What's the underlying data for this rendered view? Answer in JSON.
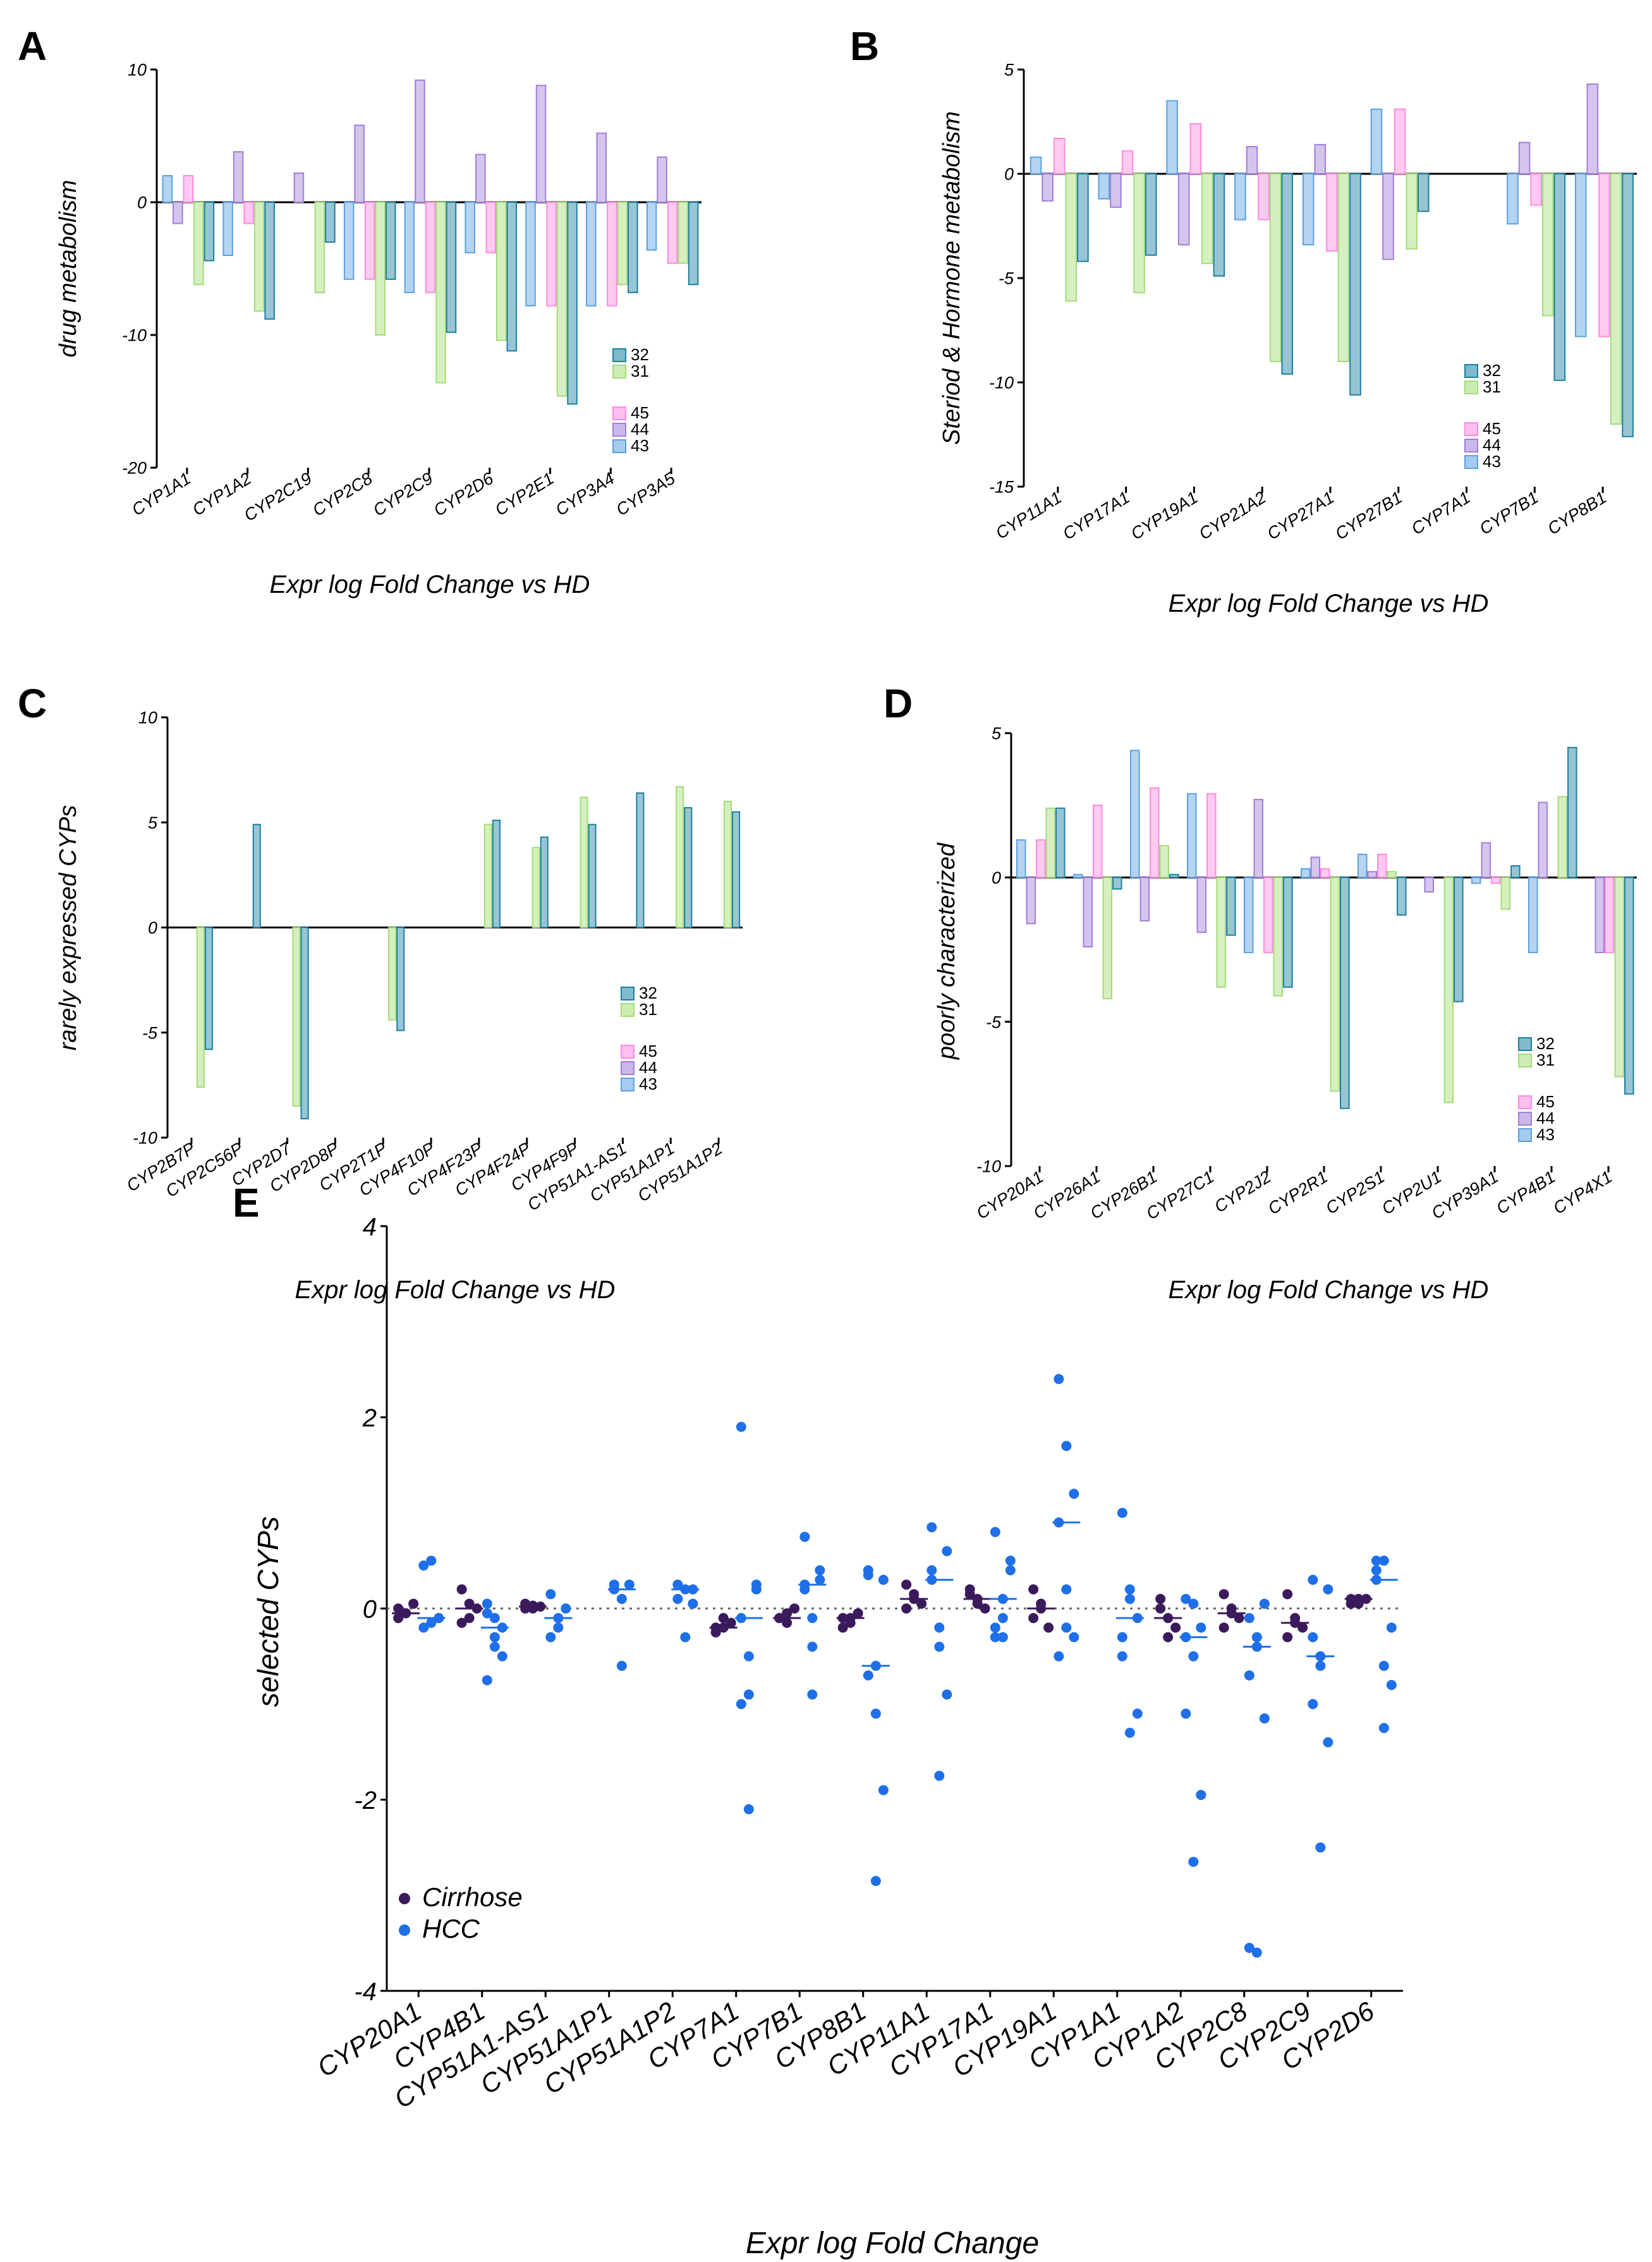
{
  "figure": {
    "series_colors": {
      "32": "#1b7fa0",
      "31": "#a4dc76",
      "45": "#ff8ae0",
      "44": "#a07ed8",
      "43": "#5ba0e0"
    }
  },
  "chart_data": [
    {
      "panel": "A",
      "type": "bar",
      "title": "",
      "ylabel": "drug metabolism",
      "xlabel": "Expr log Fold Change vs HD",
      "ylim": [
        -20,
        10
      ],
      "yticks": [
        10,
        0,
        -10,
        -20
      ],
      "categories": [
        "CYP1A1",
        "CYP1A2",
        "CYP2C19",
        "CYP2C8",
        "CYP2C9",
        "CYP2D6",
        "CYP2E1",
        "CYP3A4",
        "CYP3A5"
      ],
      "legend": [
        "32",
        "31",
        "45",
        "44",
        "43"
      ],
      "series": [
        {
          "name": "43",
          "values": [
            2,
            -4,
            0,
            -5.8,
            -6.8,
            -3.8,
            -7.8,
            -7.8,
            -3.6
          ]
        },
        {
          "name": "44",
          "values": [
            -1.6,
            3.8,
            2.2,
            5.8,
            9.2,
            3.6,
            8.8,
            5.2,
            3.4
          ]
        },
        {
          "name": "45",
          "values": [
            2,
            -1.6,
            0,
            -5.8,
            -6.8,
            -3.8,
            -7.8,
            -7.8,
            -4.6
          ]
        },
        {
          "name": "31",
          "values": [
            -6.2,
            -8.2,
            -6.8,
            -10,
            -13.6,
            -10.4,
            -14.6,
            -6.2,
            -4.6
          ]
        },
        {
          "name": "32",
          "values": [
            -4.4,
            -8.8,
            -3,
            -5.8,
            -9.8,
            -11.2,
            -15.2,
            -6.8,
            -6.2
          ]
        }
      ]
    },
    {
      "panel": "B",
      "type": "bar",
      "title": "",
      "ylabel": "Steriod & Hormone metabolism",
      "xlabel": "Expr log Fold Change vs HD",
      "ylim": [
        -15,
        5
      ],
      "yticks": [
        5,
        0,
        -5,
        -10,
        -15
      ],
      "categories": [
        "CYP11A1",
        "CYP17A1",
        "CYP19A1",
        "CYP21A2",
        "CYP27A1",
        "CYP27B1",
        "CYP7A1",
        "CYP7B1",
        "CYP8B1"
      ],
      "legend": [
        "32",
        "31",
        "45",
        "44",
        "43"
      ],
      "series": [
        {
          "name": "43",
          "values": [
            0.8,
            -1.2,
            3.5,
            -2.2,
            -3.4,
            3.1,
            0,
            -2.4,
            -7.8
          ]
        },
        {
          "name": "44",
          "values": [
            -1.3,
            -1.6,
            -3.4,
            1.3,
            1.4,
            -4.1,
            0,
            1.5,
            4.3
          ]
        },
        {
          "name": "45",
          "values": [
            1.7,
            1.1,
            2.4,
            -2.2,
            -3.7,
            3.1,
            0,
            -1.5,
            -7.8
          ]
        },
        {
          "name": "31",
          "values": [
            -6.1,
            -5.7,
            -4.3,
            -9,
            -9,
            -3.6,
            0,
            -6.8,
            -12
          ]
        },
        {
          "name": "32",
          "values": [
            -4.2,
            -3.9,
            -4.9,
            -9.6,
            -10.6,
            -1.8,
            0,
            -9.9,
            -12.6
          ]
        }
      ]
    },
    {
      "panel": "C",
      "type": "bar",
      "title": "",
      "ylabel": "rarely expressed CYPs",
      "xlabel": "Expr log Fold Change vs HD",
      "ylim": [
        -10,
        10
      ],
      "yticks": [
        10,
        5,
        0,
        -5,
        -10
      ],
      "categories": [
        "CYP2B7P",
        "CYP2C56P",
        "CYP2D7",
        "CYP2D8P",
        "CYP2T1P",
        "CYP4F10P",
        "CYP4F23P",
        "CYP4F24P",
        "CYP4F9P",
        "CYP51A1-AS1",
        "CYP51A1P1",
        "CYP51A1P2"
      ],
      "legend": [
        "32",
        "31",
        "45",
        "44",
        "43"
      ],
      "series": [
        {
          "name": "43",
          "values": [
            0,
            0,
            0,
            0,
            0,
            0,
            0,
            0,
            0,
            0,
            0,
            0
          ]
        },
        {
          "name": "44",
          "values": [
            0,
            0,
            0,
            0,
            0,
            0,
            0,
            0,
            0,
            0,
            0,
            0
          ]
        },
        {
          "name": "45",
          "values": [
            0,
            0,
            0,
            0,
            0,
            0,
            0,
            0,
            0,
            0,
            0,
            0
          ]
        },
        {
          "name": "31",
          "values": [
            -7.6,
            0,
            -8.5,
            0,
            -4.4,
            0,
            4.9,
            3.8,
            6.2,
            0,
            6.7,
            6
          ]
        },
        {
          "name": "32",
          "values": [
            -5.8,
            4.9,
            -9.1,
            0,
            -4.9,
            0,
            5.1,
            4.3,
            4.9,
            6.4,
            5.7,
            5.5
          ]
        }
      ]
    },
    {
      "panel": "D",
      "type": "bar",
      "title": "",
      "ylabel": "poorly characterized",
      "xlabel": "Expr log Fold Change vs HD",
      "ylim": [
        -10,
        5
      ],
      "yticks": [
        5,
        0,
        -5,
        -10
      ],
      "categories": [
        "CYP20A1",
        "CYP26A1",
        "CYP26B1",
        "CYP27C1",
        "CYP2J2",
        "CYP2R1",
        "CYP2S1",
        "CYP2U1",
        "CYP39A1",
        "CYP4B1",
        "CYP4X1"
      ],
      "legend": [
        "32",
        "31",
        "45",
        "44",
        "43"
      ],
      "series": [
        {
          "name": "43",
          "values": [
            1.3,
            0.1,
            4.4,
            2.9,
            -2.6,
            0.3,
            0.8,
            0,
            -0.2,
            -2.6,
            0
          ]
        },
        {
          "name": "44",
          "values": [
            -1.6,
            -2.4,
            -1.5,
            -1.9,
            2.7,
            0.7,
            0.2,
            -0.5,
            1.2,
            2.6,
            -2.6
          ]
        },
        {
          "name": "45",
          "values": [
            1.3,
            2.5,
            3.1,
            2.9,
            -2.6,
            0.3,
            0.8,
            0,
            -0.2,
            0,
            -2.6
          ]
        },
        {
          "name": "31",
          "values": [
            2.4,
            -4.2,
            1.1,
            -3.8,
            -4.1,
            -7.4,
            0.2,
            -7.8,
            -1.1,
            2.8,
            -6.9
          ]
        },
        {
          "name": "32",
          "values": [
            2.4,
            -0.4,
            0.1,
            -2,
            -3.8,
            -8,
            -1.3,
            -4.3,
            0.4,
            4.5,
            -7.5
          ]
        }
      ]
    },
    {
      "panel": "E",
      "type": "scatter",
      "title": "",
      "ylabel": "selected CYPs",
      "xlabel": "Expr log Fold Change",
      "ylim": [
        -4,
        4
      ],
      "yticks": [
        4,
        2,
        0,
        -2,
        -4
      ],
      "categories": [
        "CYP20A1",
        "CYP4B1",
        "CYP51A1-AS1",
        "CYP51A1P1",
        "CYP51A1P2",
        "CYP7A1",
        "CYP7B1",
        "CYP8B1",
        "CYP11A1",
        "CYP17A1",
        "CYP19A1",
        "CYP1A1",
        "CYP1A2",
        "CYP2C8",
        "CYP2C9",
        "CYP2D6"
      ],
      "legend": [
        "Cirrhose",
        "HCC"
      ],
      "series": [
        {
          "name": "Cirrhose",
          "color": "#3b1a5c",
          "values": [
            [
              0,
              -0.05,
              0.05,
              -0.1,
              -0.05
            ],
            [
              0.2,
              -0.1,
              0,
              -0.15,
              0.05
            ],
            [
              0.05,
              0,
              0.02,
              0,
              0.03
            ],
            [],
            [],
            [
              -0.2,
              -0.1,
              -0.15,
              -0.25,
              -0.2
            ],
            [
              -0.1,
              -0.05,
              0,
              -0.1,
              -0.15
            ],
            [
              -0.1,
              -0.15,
              -0.05,
              -0.2,
              -0.1
            ],
            [
              0.25,
              0.1,
              0.05,
              0,
              0.15
            ],
            [
              0.2,
              0.1,
              0,
              0.15,
              0.05
            ],
            [
              0.2,
              0.05,
              -0.2,
              -0.1,
              0
            ],
            [],
            [
              0.1,
              -0.1,
              -0.2,
              0,
              -0.3
            ],
            [
              0.15,
              -0.05,
              -0.1,
              -0.2,
              0
            ],
            [
              0.15,
              -0.1,
              -0.2,
              -0.3,
              -0.15
            ],
            [
              0.1,
              0.05,
              0.1,
              0.05,
              0.1
            ]
          ]
        },
        {
          "name": "HCC",
          "color": "#1f6fe8",
          "values": [
            [
              0.45,
              -0.15,
              -0.1,
              -0.2,
              0.5,
              -0.1
            ],
            [
              0.05,
              -0.3,
              -0.5,
              -0.75,
              -0.1,
              -0.2,
              -0.05,
              -0.4
            ],
            [
              0.15,
              -0.2,
              0,
              -0.3,
              -0.1
            ],
            [
              0.25,
              -0.6,
              0.25,
              0.2,
              0.1
            ],
            [
              0.25,
              -0.3,
              0.2,
              0.1,
              0.2,
              0.05
            ],
            [
              1.9,
              -2.1,
              0.2,
              -1.0,
              -0.9,
              0.25,
              -0.1,
              -0.5
            ],
            [
              0.75,
              -0.9,
              0.3,
              0.2,
              -0.4,
              0.4,
              0.25,
              -0.1
            ],
            [
              0.35,
              -2.85,
              -1.9,
              0.4,
              -0.6,
              0.3,
              -0.7,
              -1.1
            ],
            [
              0.85,
              -1.75,
              -0.9,
              0.4,
              -0.2,
              0.6,
              0.3,
              -0.4
            ],
            [
              0.8,
              -0.3,
              0.4,
              -0.2,
              0.1,
              0.5,
              -0.3,
              -0.1
            ],
            [
              2.4,
              1.7,
              1.2,
              0.9,
              0.2,
              -0.3,
              -0.5,
              -0.2
            ],
            [
              1.0,
              -1.3,
              -1.1,
              -0.5,
              0.2,
              -0.1,
              -0.3,
              0.1
            ],
            [
              0.1,
              -2.65,
              -1.95,
              -1.1,
              -0.5,
              -0.2,
              -0.3,
              0.05
            ],
            [
              -3.55,
              -3.6,
              -1.15,
              -0.7,
              -0.3,
              0.05,
              -0.1,
              -0.4
            ],
            [
              0.3,
              -2.5,
              -1.4,
              -1.0,
              -0.6,
              0.2,
              -0.3,
              -0.5
            ],
            [
              0.5,
              -1.25,
              -0.8,
              0.4,
              0.5,
              -0.2,
              0.3,
              -0.6
            ]
          ]
        }
      ]
    }
  ]
}
